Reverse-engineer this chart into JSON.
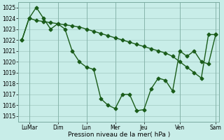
{
  "bg_color": "#c8ede8",
  "grid_color": "#a0c8c0",
  "line_color": "#1a5c1a",
  "linewidth": 1.0,
  "marker": "D",
  "marker_size": 2.5,
  "ylabel": "Pression niveau de la mer( hPa )",
  "ytick_min": 1015,
  "ytick_max": 1025,
  "xtick_labels": [
    "LuMar",
    "Dim",
    "Lun",
    "Mer",
    "Jeu",
    "Ven",
    "Sam"
  ],
  "smooth_x": [
    0,
    1,
    2,
    3,
    4,
    5,
    6,
    7,
    8,
    9,
    10,
    11,
    12,
    13,
    14,
    15,
    16,
    17,
    18,
    19,
    20,
    21,
    22,
    23,
    24,
    25,
    26,
    27
  ],
  "smooth_y": [
    1022.0,
    1024.0,
    1023.8,
    1023.7,
    1023.6,
    1023.5,
    1023.4,
    1023.3,
    1023.2,
    1023.0,
    1022.8,
    1022.6,
    1022.4,
    1022.2,
    1022.0,
    1021.8,
    1021.6,
    1021.4,
    1021.2,
    1021.0,
    1020.8,
    1020.5,
    1020.0,
    1019.5,
    1019.0,
    1018.5,
    1022.5,
    1022.5
  ],
  "volatile_x": [
    0,
    1,
    2,
    3,
    4,
    5,
    6,
    7,
    8,
    9,
    10,
    11,
    12,
    13,
    14,
    15,
    16,
    17,
    18,
    19,
    20,
    21,
    22,
    23,
    24,
    25,
    26,
    27
  ],
  "volatile_y": [
    1022.0,
    1024.0,
    1025.0,
    1024.0,
    1023.0,
    1023.5,
    1023.0,
    1021.0,
    1020.0,
    1019.5,
    1019.3,
    1016.6,
    1016.0,
    1015.7,
    1017.0,
    1017.0,
    1015.5,
    1015.6,
    1017.5,
    1018.5,
    1018.3,
    1017.3,
    1021.0,
    1020.5,
    1021.0,
    1020.0,
    1019.8,
    1022.5
  ],
  "xlim": [
    -0.5,
    27.5
  ],
  "xtick_pos": [
    1,
    5,
    9,
    13,
    17,
    22,
    27
  ]
}
